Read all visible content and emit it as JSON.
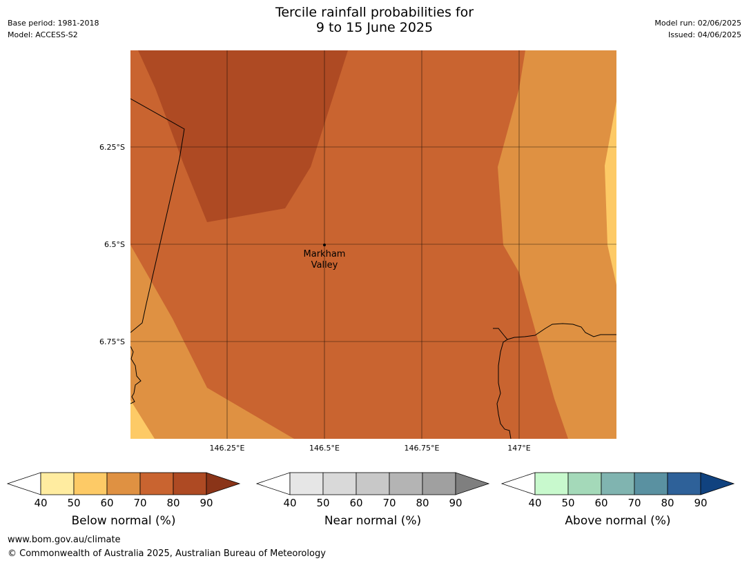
{
  "header": {
    "title_line1": "Tercile rainfall probabilities for",
    "title_line2": "9 to 15 June 2025",
    "base_period": "Base period: 1981-2018",
    "model": "Model: ACCESS-S2",
    "model_run": "Model run: 02/06/2025",
    "issued": "Issued: 04/06/2025"
  },
  "map": {
    "lat_labels": [
      "6.25°S",
      "6.5°S",
      "6.75°S"
    ],
    "lon_labels": [
      "146.25°E",
      "146.5°E",
      "146.75°E",
      "147°E"
    ],
    "place_name_line1": "Markham",
    "place_name_line2": "Valley"
  },
  "legends": [
    {
      "label": "Below normal (%)",
      "ticks": [
        "40",
        "50",
        "60",
        "70",
        "80",
        "90"
      ],
      "colors": [
        "#ffeca0",
        "#fdca66",
        "#df9142",
        "#c96430",
        "#ae4a23",
        "#8a3418"
      ]
    },
    {
      "label": "Near normal (%)",
      "ticks": [
        "40",
        "50",
        "60",
        "70",
        "80",
        "90"
      ],
      "colors": [
        "#e6e6e6",
        "#d9d9d9",
        "#c8c8c8",
        "#b4b4b4",
        "#a0a0a0",
        "#7f7f7f"
      ]
    },
    {
      "label": "Above normal (%)",
      "ticks": [
        "40",
        "50",
        "60",
        "70",
        "80",
        "90"
      ],
      "colors": [
        "#c8f9cd",
        "#a4d9b9",
        "#80b4b0",
        "#5a91a1",
        "#2e6199",
        "#10427f"
      ]
    }
  ],
  "footer": {
    "url": "www.bom.gov.au/climate",
    "copyright": "© Commonwealth of Australia 2025, Australian Bureau of Meteorology"
  }
}
